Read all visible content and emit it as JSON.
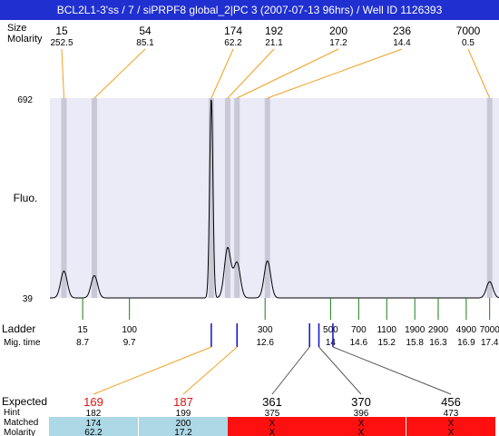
{
  "title": "BCL2L1-3'ss / 7 / siPRPF8 global_2|PC 3 (2007-07-13 96hrs) / Well ID 1126393",
  "header_labels": {
    "size_label": "Size",
    "molarity_label": "Molarity"
  },
  "axis": {
    "ylabel": "Fluo.",
    "y_max_label": "692",
    "y_min_label": "39"
  },
  "ladder_labels": {
    "ladder_label": "Ladder",
    "mig_time_label": "Mig. time"
  },
  "table_labels": {
    "expected": "Expected",
    "hint": "Hint",
    "matched": "Matched",
    "molarity": "Molarity"
  },
  "colors": {
    "title_bg": "#1f2fd0",
    "plot_bg": "#ebebf8",
    "peak_band": "#c8c8d6",
    "connector": "#f0a020",
    "ladder_tick": "#1a7a1a",
    "marker": "#1010c8",
    "expected_red": "#e01010",
    "matched_bg": "#add8e6",
    "unmatched_bg": "#ff1010"
  },
  "chart_data": {
    "type": "line",
    "title": "BCL2L1-3'ss / 7 / siPRPF8 global_2|PC 3 (2007-07-13 96hrs) / Well ID 1126393",
    "ylabel": "Fluo.",
    "ylim": [
      39,
      692
    ],
    "peaks": [
      {
        "size": "15",
        "molarity": "252.5",
        "mig_time": 8.3,
        "height": 127
      },
      {
        "size": "54",
        "molarity": "85.1",
        "mig_time": 8.95,
        "height": 112
      },
      {
        "size": "174",
        "molarity": "62.2",
        "mig_time": 11.45,
        "height": 692
      },
      {
        "size": "192",
        "molarity": "21.1",
        "mig_time": 11.8,
        "height": 202
      },
      {
        "size": "200",
        "molarity": "17.2",
        "mig_time": 12.0,
        "height": 154
      },
      {
        "size": "236",
        "molarity": "14.4",
        "mig_time": 12.65,
        "height": 160
      },
      {
        "size": "7000",
        "molarity": "0.5",
        "mig_time": 17.4,
        "height": 92
      }
    ],
    "ladder": [
      {
        "size": "15",
        "mig_time": "8.7"
      },
      {
        "size": "100",
        "mig_time": "9.7"
      },
      {
        "size": "300",
        "mig_time": "12.6"
      },
      {
        "size": "500",
        "mig_time": "14"
      },
      {
        "size": "700",
        "mig_time": "14.6"
      },
      {
        "size": "1100",
        "mig_time": "15.2"
      },
      {
        "size": "1900",
        "mig_time": "15.8"
      },
      {
        "size": "2900",
        "mig_time": "16.3"
      },
      {
        "size": "4900",
        "mig_time": "16.9"
      },
      {
        "size": "7000",
        "mig_time": "17.4"
      }
    ],
    "expected": [
      {
        "expected": "169",
        "hint": "182",
        "matched": "174",
        "molarity": "62.2",
        "status": "matched",
        "mig_time": 11.45
      },
      {
        "expected": "187",
        "hint": "199",
        "matched": "200",
        "molarity": "17.2",
        "status": "matched",
        "mig_time": 12.0
      },
      {
        "expected": "361",
        "hint": "375",
        "matched": "X",
        "molarity": "X",
        "status": "unmatched",
        "mig_time": 13.55
      },
      {
        "expected": "370",
        "hint": "396",
        "matched": "X",
        "molarity": "X",
        "status": "unmatched",
        "mig_time": 13.75
      },
      {
        "expected": "456",
        "hint": "473",
        "matched": "X",
        "molarity": "X",
        "status": "unmatched",
        "mig_time": 14.05
      }
    ]
  }
}
